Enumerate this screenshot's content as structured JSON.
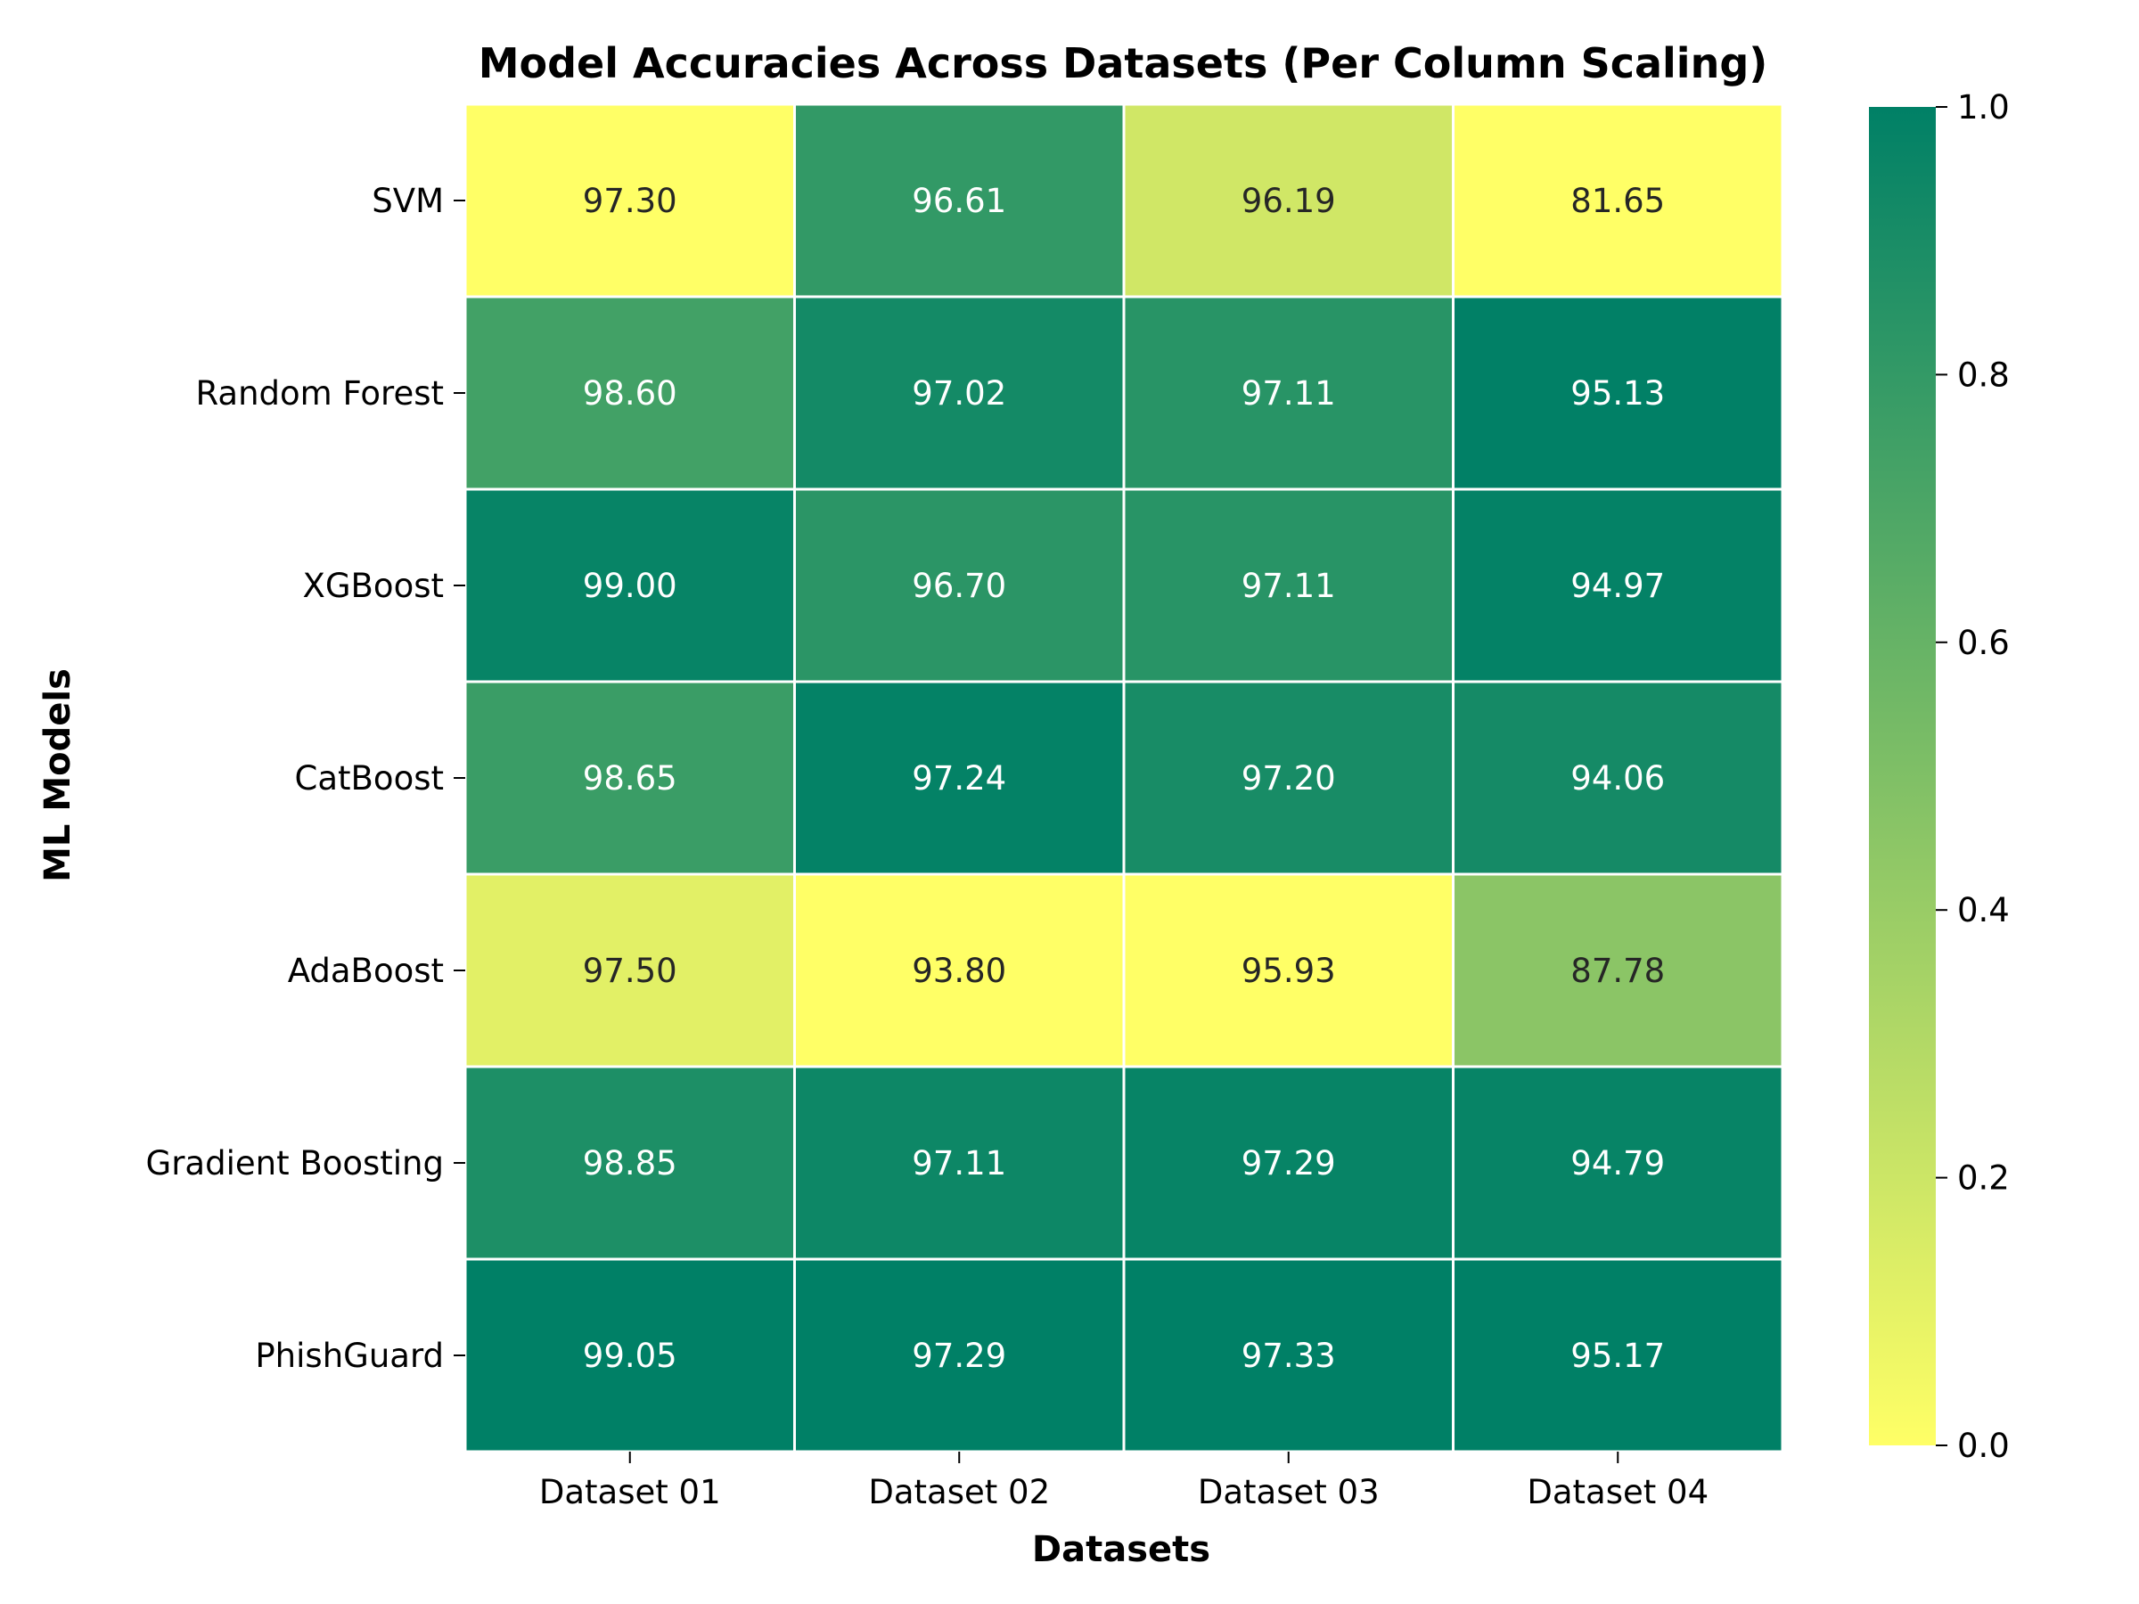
{
  "chart_data": {
    "type": "heatmap",
    "title": "Model Accuracies Across Datasets (Per Column Scaling)",
    "xlabel": "Datasets",
    "ylabel": "ML Models",
    "columns": [
      "Dataset 01",
      "Dataset 02",
      "Dataset 03",
      "Dataset 04"
    ],
    "rows": [
      "SVM",
      "Random Forest",
      "XGBoost",
      "CatBoost",
      "AdaBoost",
      "Gradient Boosting",
      "PhishGuard"
    ],
    "values": [
      [
        97.3,
        96.61,
        96.19,
        81.65
      ],
      [
        98.6,
        97.02,
        97.11,
        95.13
      ],
      [
        99.0,
        96.7,
        97.11,
        94.97
      ],
      [
        98.65,
        97.24,
        97.2,
        94.06
      ],
      [
        97.5,
        93.8,
        95.93,
        87.78
      ],
      [
        98.85,
        97.11,
        97.29,
        94.79
      ],
      [
        99.05,
        97.29,
        97.33,
        95.17
      ]
    ],
    "value_labels": [
      [
        "97.30",
        "96.61",
        "96.19",
        "81.65"
      ],
      [
        "98.60",
        "97.02",
        "97.11",
        "95.13"
      ],
      [
        "99.00",
        "96.70",
        "97.11",
        "94.97"
      ],
      [
        "98.65",
        "97.24",
        "97.20",
        "94.06"
      ],
      [
        "97.50",
        "93.80",
        "95.93",
        "87.78"
      ],
      [
        "98.85",
        "97.11",
        "97.29",
        "94.79"
      ],
      [
        "99.05",
        "97.29",
        "97.33",
        "95.17"
      ]
    ],
    "scaling": "per-column min-max",
    "colormap": {
      "low_color": "#ffff66",
      "high_color": "#008066"
    },
    "colorbar": {
      "range": [
        0.0,
        1.0
      ],
      "ticks": [
        "0.0",
        "0.2",
        "0.4",
        "0.6",
        "0.8",
        "1.0"
      ]
    }
  }
}
